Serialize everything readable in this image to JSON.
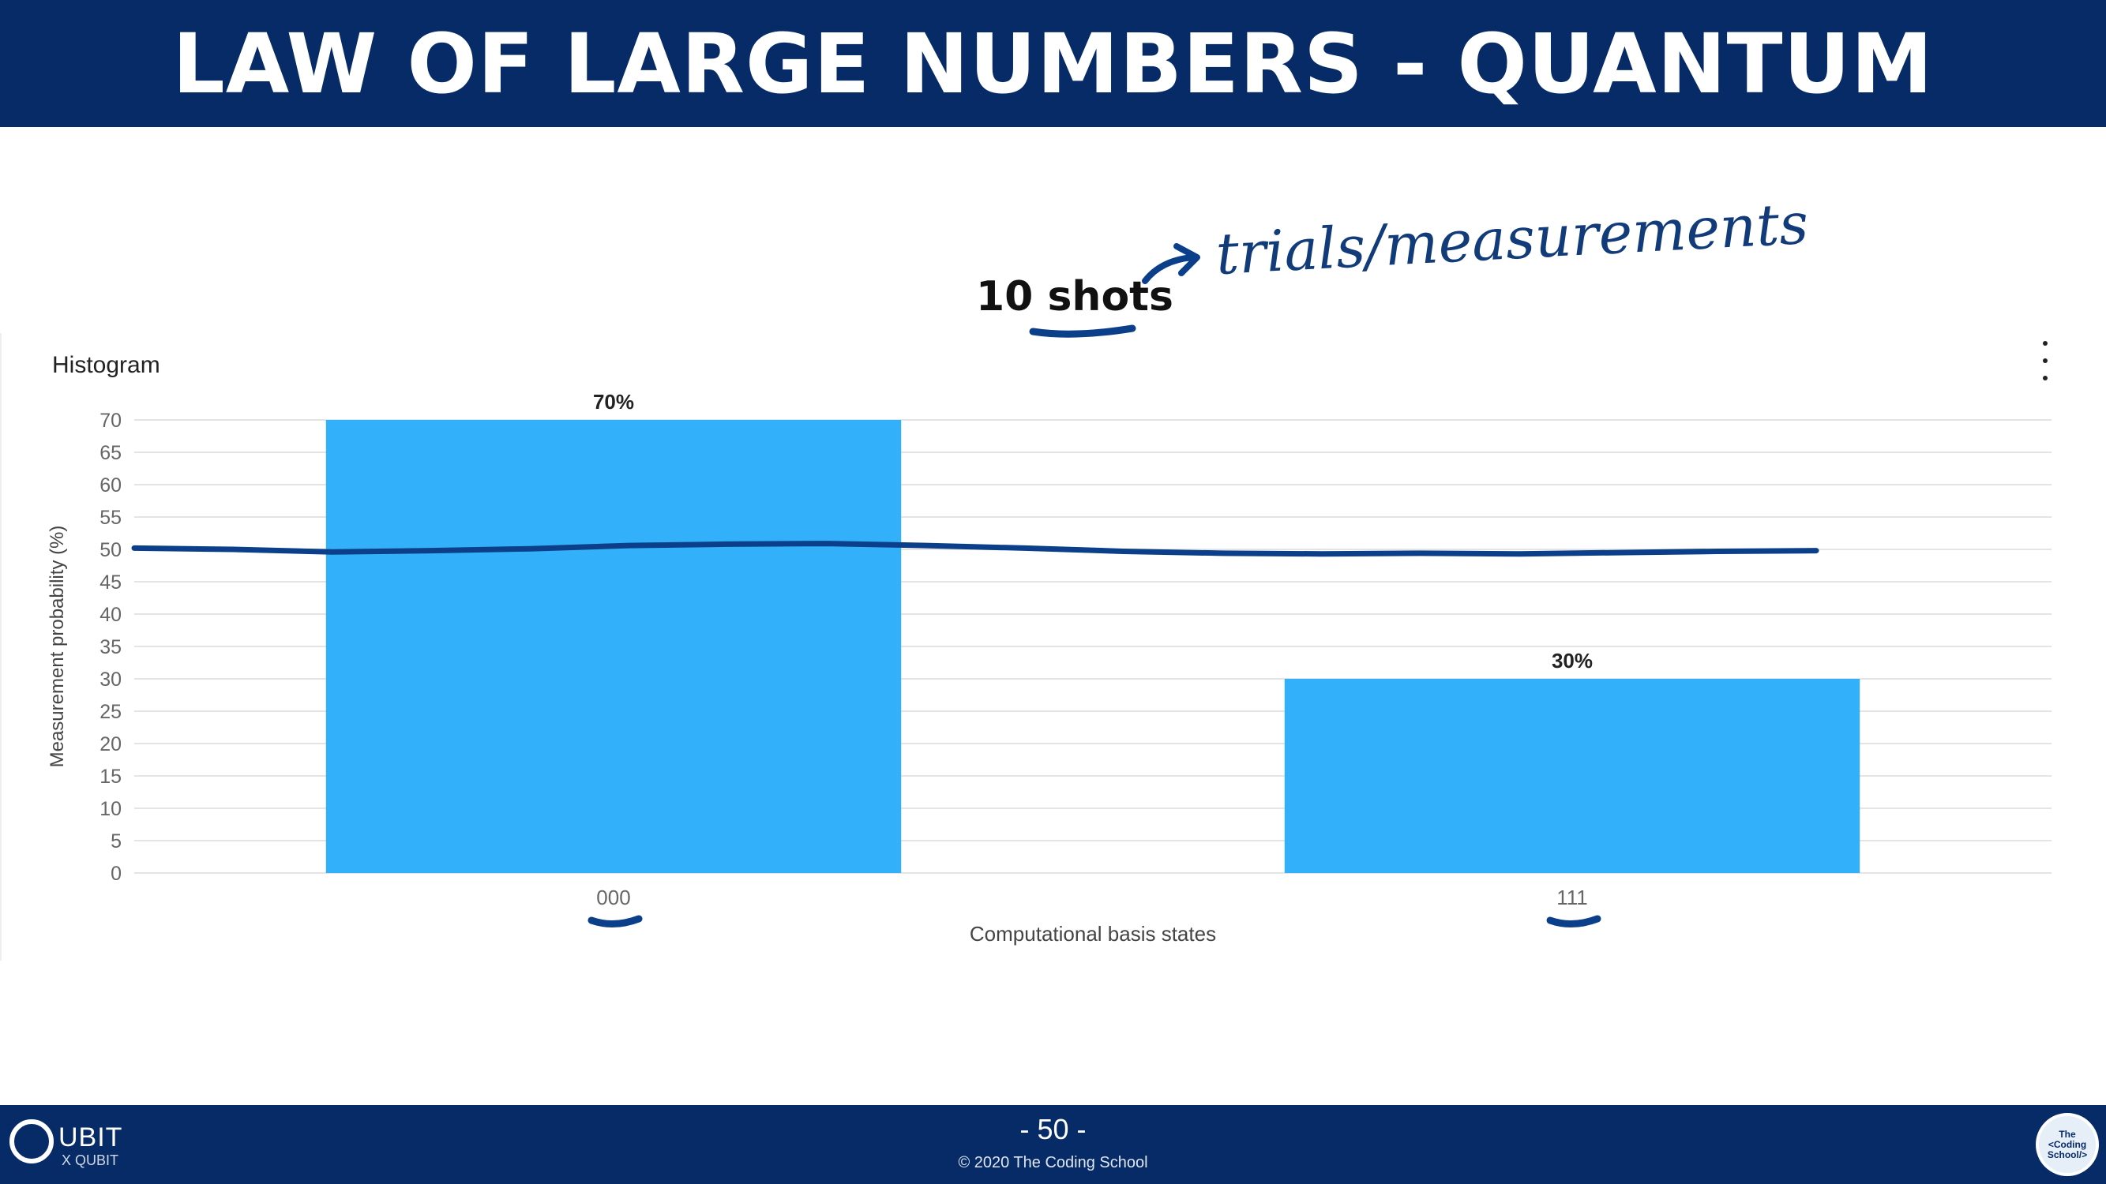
{
  "slide": {
    "title": "LAW OF LARGE NUMBERS - QUANTUM",
    "shots_label": "10 shots",
    "annotation": "trials/measurements",
    "page_number": "- 50 -",
    "copyright": "© 2020 The Coding School",
    "logo_left_word": "UBIT",
    "logo_left_sub": "X QUBIT",
    "logo_right_text": "The <Coding School/>"
  },
  "chart_card": {
    "title": "Histogram"
  },
  "chart_data": {
    "type": "bar",
    "title": "Histogram",
    "categories": [
      "000",
      "111"
    ],
    "values": [
      70,
      30
    ],
    "data_labels": [
      "70%",
      "30%"
    ],
    "xlabel": "Computational basis states",
    "ylabel": "Measurement probability (%)",
    "ylim": [
      0,
      70
    ],
    "yticks": [
      0,
      5,
      10,
      15,
      20,
      25,
      30,
      35,
      40,
      45,
      50,
      55,
      60,
      65,
      70
    ],
    "grid": true,
    "annotation_line": {
      "description": "hand-drawn line at approximately 50%",
      "approx_value": 50
    },
    "colors": {
      "bar": "#33b0fa",
      "grid": "#e4e4e4",
      "annotation": "#0b3f8a"
    }
  }
}
